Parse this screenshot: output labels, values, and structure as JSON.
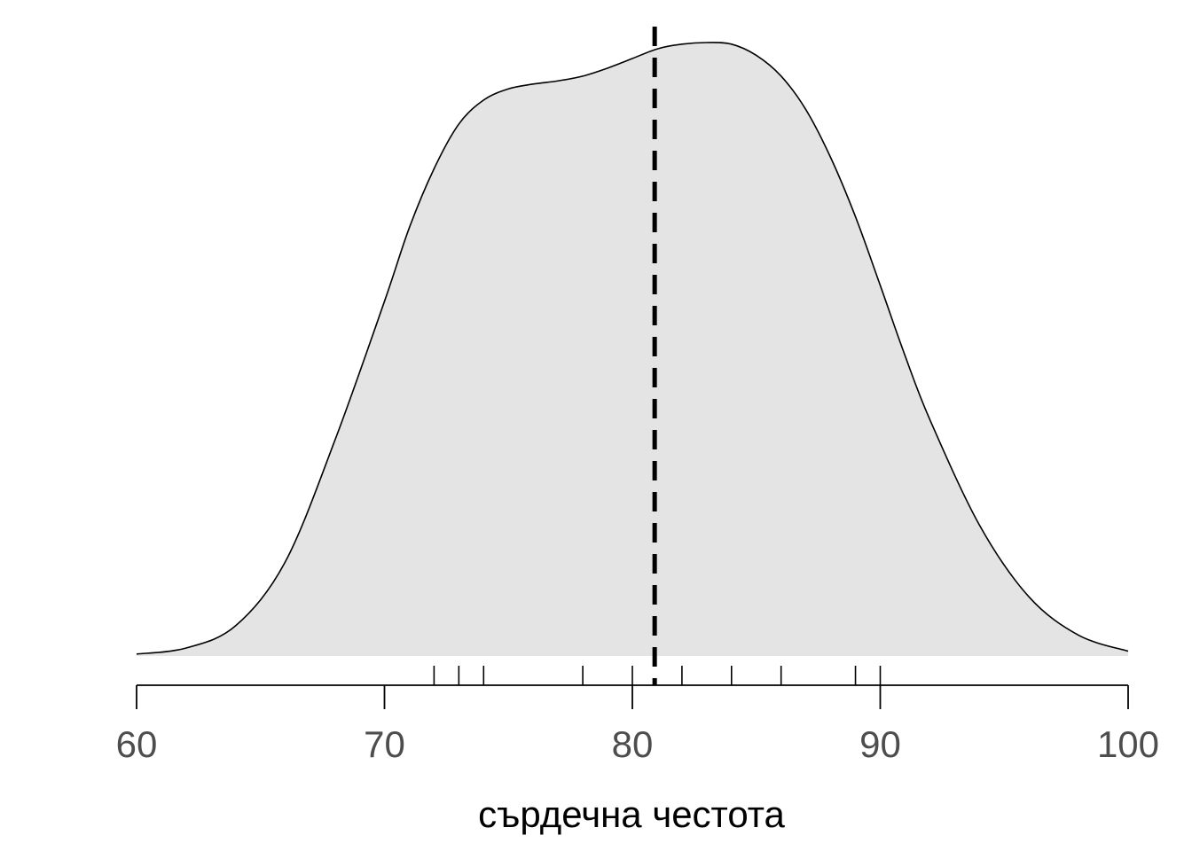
{
  "chart_data": {
    "type": "area",
    "title": "",
    "xlabel": "сърдечна честота",
    "ylabel": "",
    "xlim": [
      60,
      100
    ],
    "x_ticks": [
      60,
      70,
      80,
      90,
      100
    ],
    "x_tick_labels": [
      "60",
      "70",
      "80",
      "90",
      "100"
    ],
    "grid": false,
    "legend": "none",
    "series": [
      {
        "kind": "density",
        "x": [
          60,
          62,
          64,
          66,
          68,
          70,
          71,
          72,
          73,
          74,
          75,
          76,
          77,
          78,
          79,
          80,
          81,
          82,
          83,
          84,
          85,
          86,
          87,
          88,
          89,
          90,
          91,
          92,
          94,
          96,
          98,
          100
        ],
        "y": [
          0.0012,
          0.005,
          0.019,
          0.059,
          0.135,
          0.222,
          0.268,
          0.305,
          0.333,
          0.348,
          0.355,
          0.358,
          0.36,
          0.363,
          0.368,
          0.374,
          0.38,
          0.383,
          0.384,
          0.383,
          0.376,
          0.363,
          0.342,
          0.312,
          0.275,
          0.232,
          0.188,
          0.148,
          0.082,
          0.037,
          0.013,
          0.003
        ],
        "ylim": [
          0,
          0.384
        ]
      }
    ],
    "mean_line": 80.9,
    "rug": [
      72,
      73,
      74,
      78,
      80,
      82,
      84,
      86,
      89,
      90
    ],
    "colors": {
      "fill": "#e4e4e4",
      "curve": "#000000",
      "mean_line": "#000000",
      "axis": "#000000",
      "tick_label": "#4d4d4d"
    }
  }
}
